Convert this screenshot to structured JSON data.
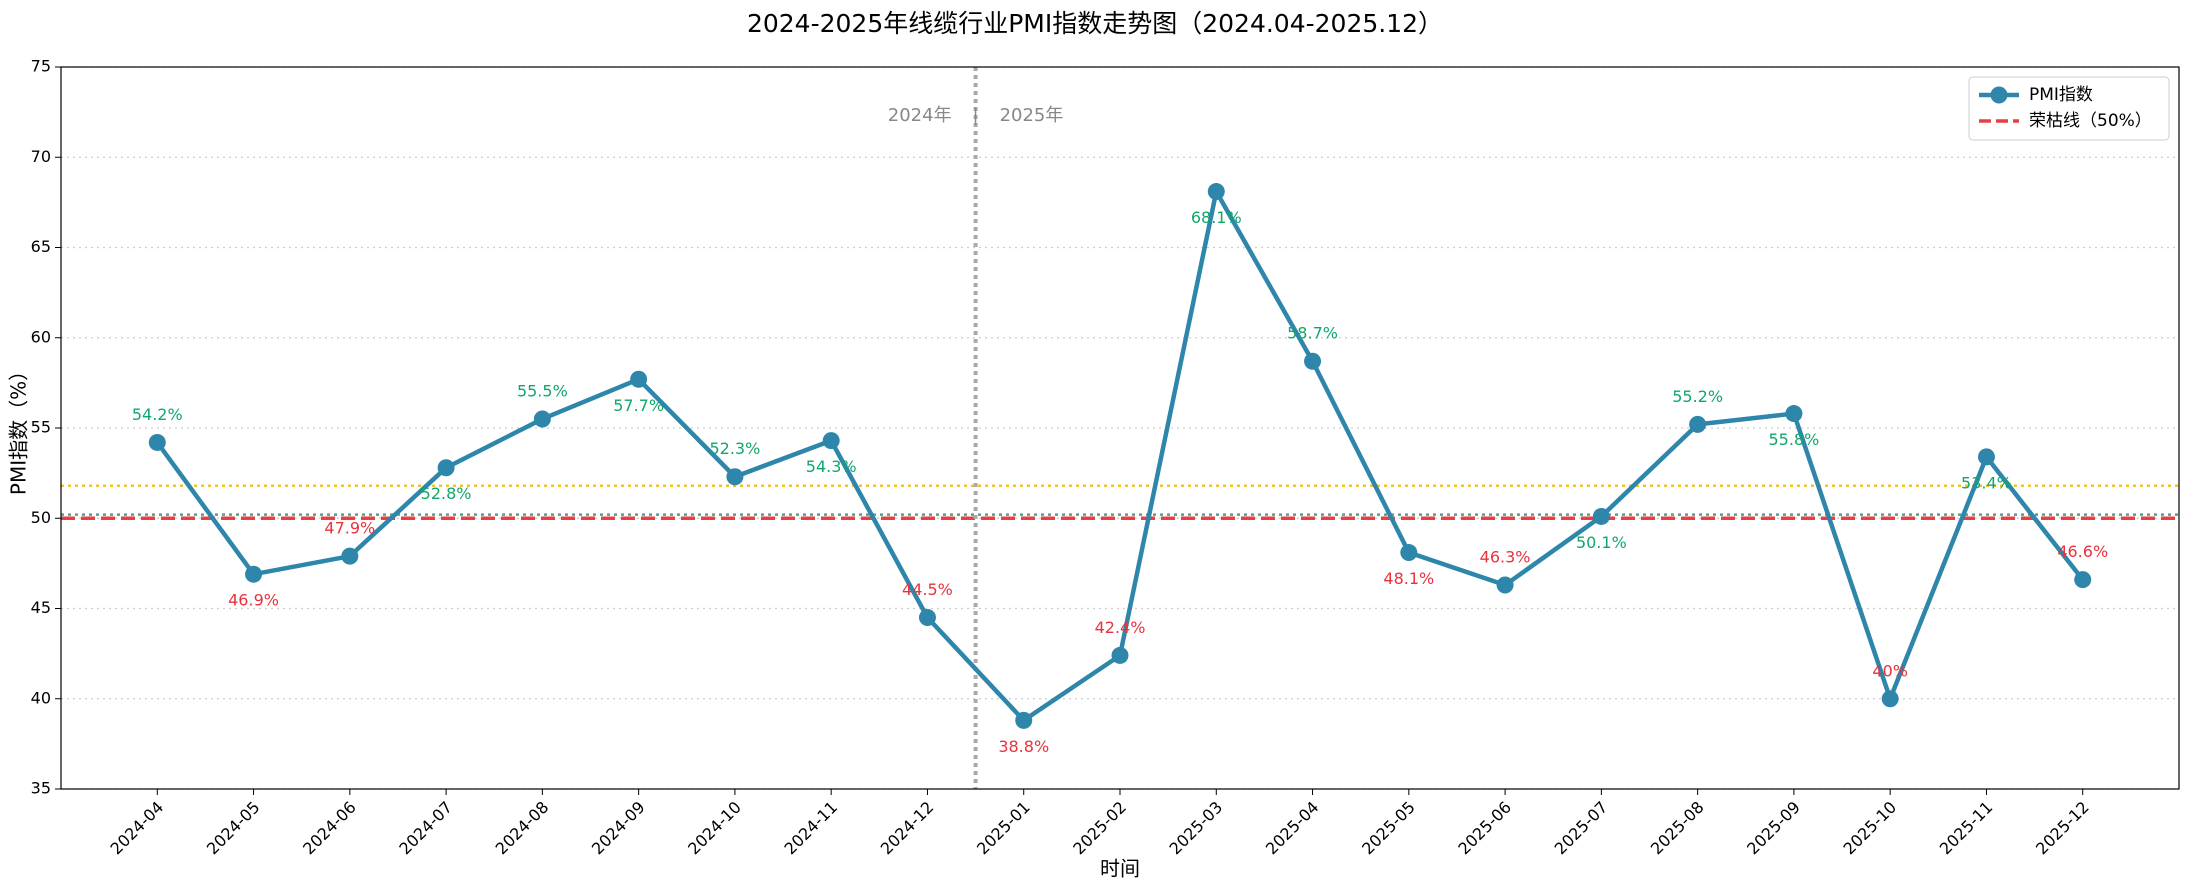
{
  "chart_data": {
    "type": "line",
    "title": "2024-2025年线缆行业PMI指数走势图（2024.04-2025.12）",
    "x_label": "时间",
    "y_label": "PMI指数（%）",
    "categories": [
      "2024-04",
      "2024-05",
      "2024-06",
      "2024-07",
      "2024-08",
      "2024-09",
      "2024-10",
      "2024-11",
      "2024-12",
      "2025-01",
      "2025-02",
      "2025-03",
      "2025-04",
      "2025-05",
      "2025-06",
      "2025-07",
      "2025-08",
      "2025-09",
      "2025-10",
      "2025-11",
      "2025-12"
    ],
    "series": [
      {
        "name": "PMI指数",
        "color": "#2e86ab",
        "values": [
          54.2,
          46.9,
          47.9,
          52.8,
          55.5,
          57.7,
          52.3,
          54.3,
          44.5,
          38.8,
          42.4,
          68.1,
          58.7,
          48.1,
          46.3,
          50.1,
          55.2,
          55.8,
          40,
          53.4,
          46.6
        ],
        "value_labels": [
          "54.2%",
          "46.9%",
          "47.9%",
          "52.8%",
          "55.5%",
          "57.7%",
          "52.3%",
          "54.3%",
          "44.5%",
          "38.8%",
          "42.4%",
          "68.1%",
          "58.7%",
          "48.1%",
          "46.3%",
          "50.1%",
          "55.2%",
          "55.8%",
          "40%",
          "53.4%",
          "46.6%"
        ]
      }
    ],
    "threshold": {
      "name": "荣枯线（50%）",
      "value": 50,
      "color": "#e84040"
    },
    "reference_lines": [
      {
        "value": 51.8,
        "color": "#f2c12e"
      },
      {
        "value": 50.2,
        "color": "#5a9e8e"
      }
    ],
    "above_color": "#10a86a",
    "below_color": "#e8323c",
    "divider_labels": [
      "2024年",
      "|",
      "2025年"
    ],
    "ylim": [
      35,
      75
    ],
    "yticks": [
      35,
      40,
      45,
      50,
      55,
      60,
      65,
      70,
      75
    ],
    "grid": true,
    "legend": "upper right"
  }
}
